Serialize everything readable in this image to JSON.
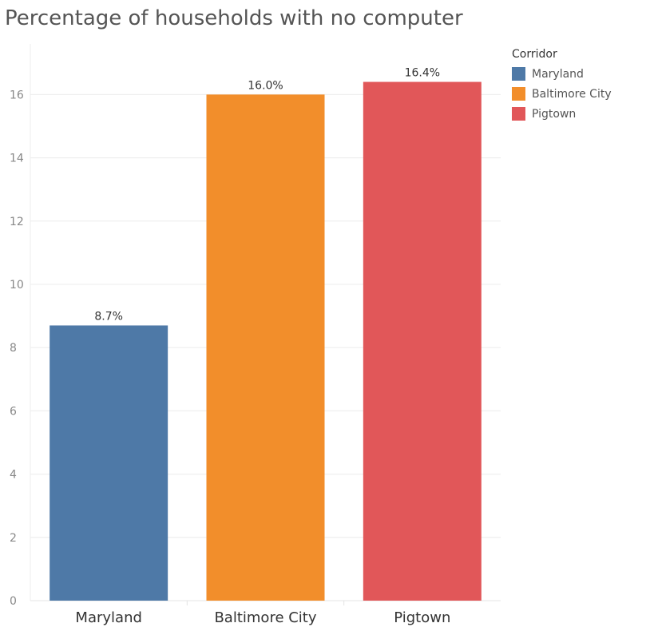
{
  "chart_data": {
    "type": "bar",
    "title": "Percentage of households with no computer",
    "categories": [
      "Maryland",
      "Baltimore City",
      "Pigtown"
    ],
    "values": [
      8.7,
      16.0,
      16.4
    ],
    "data_labels": [
      "8.7%",
      "16.0%",
      "16.4%"
    ],
    "colors": [
      "#4e79a7",
      "#f28e2b",
      "#e15759"
    ],
    "yticks": [
      0,
      2,
      4,
      6,
      8,
      10,
      12,
      14,
      16
    ],
    "ylim": [
      0,
      17.6
    ],
    "grid": true,
    "legend": {
      "title": "Corridor",
      "placement": "top-right",
      "items": [
        "Maryland",
        "Baltimore City",
        "Pigtown"
      ]
    }
  }
}
